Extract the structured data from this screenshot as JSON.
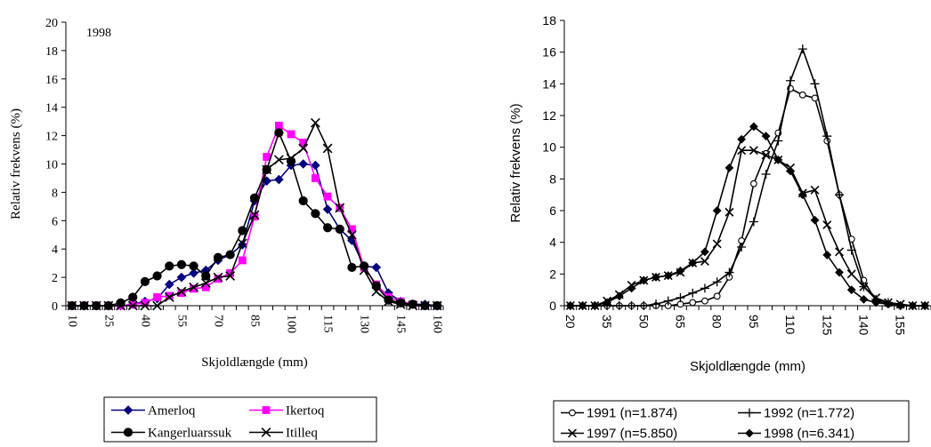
{
  "chart_data": [
    {
      "type": "line",
      "annotation": "1998",
      "xlabel": "Skjoldlængde (mm)",
      "ylabel": "Relativ frekvens (%)",
      "x_start": 10,
      "x_step": 5,
      "x_count": 31,
      "x_tick_labels": [
        "10",
        "25",
        "40",
        "55",
        "70",
        "85",
        "100",
        "115",
        "130",
        "145",
        "160"
      ],
      "ylim": [
        0,
        20
      ],
      "y_step": 2,
      "y_tick_labels": [
        "0",
        "2",
        "4",
        "6",
        "8",
        "10",
        "12",
        "14",
        "16",
        "18",
        "20"
      ],
      "legend_position": "below",
      "series": [
        {
          "name": "Amerloq",
          "color": "#000080",
          "marker": "diamond",
          "values": [
            0,
            0,
            0,
            0,
            0,
            0.1,
            0.3,
            0.5,
            1.5,
            2.0,
            2.3,
            2.5,
            3.2,
            3.6,
            4.3,
            7.4,
            8.8,
            8.9,
            9.9,
            10.0,
            9.9,
            6.8,
            5.4,
            4.6,
            2.8,
            2.7,
            0.9,
            0.3,
            0.1,
            0.1,
            0
          ]
        },
        {
          "name": "Ikertoq",
          "color": "#ff00ff",
          "marker": "square",
          "values": [
            0,
            0,
            0,
            0,
            0,
            0.1,
            0.2,
            0.6,
            0.7,
            0.9,
            1.2,
            1.3,
            1.9,
            2.3,
            3.2,
            6.3,
            10.5,
            12.7,
            12.1,
            11.5,
            9.0,
            7.7,
            6.9,
            5.4,
            2.7,
            1.5,
            0.6,
            0.3,
            0.1,
            0,
            0
          ]
        },
        {
          "name": "Kangerluarssuk",
          "color": "#000000",
          "marker": "circle",
          "values": [
            0,
            0,
            0,
            0,
            0.2,
            0.6,
            1.7,
            2.1,
            2.8,
            2.9,
            2.8,
            2.1,
            3.4,
            3.6,
            5.3,
            7.6,
            9.6,
            12.2,
            10.2,
            7.4,
            6.5,
            5.5,
            5.4,
            2.7,
            2.8,
            1.4,
            0.4,
            0.2,
            0.1,
            0,
            0
          ]
        },
        {
          "name": "Itilleq",
          "color": "#000000",
          "marker": "x",
          "values": [
            0,
            0,
            0,
            0,
            0,
            0,
            0,
            0,
            0.6,
            1.0,
            1.3,
            1.6,
            2.0,
            2.1,
            4.4,
            6.4,
            9.6,
            10.3,
            10.4,
            11.1,
            12.9,
            11.1,
            6.9,
            5.0,
            2.5,
            1.0,
            0.3,
            0.1,
            0,
            0,
            0
          ]
        }
      ]
    },
    {
      "type": "line",
      "xlabel": "Skjoldlængde (mm)",
      "ylabel": "Relativ frekvens (%)",
      "x_start": 20,
      "x_step": 5,
      "x_count": 30,
      "x_tick_labels": [
        "20",
        "35",
        "50",
        "65",
        "80",
        "95",
        "110",
        "125",
        "140",
        "155"
      ],
      "ylim": [
        0,
        18
      ],
      "y_step": 2,
      "y_tick_labels": [
        "0",
        "2",
        "4",
        "6",
        "8",
        "10",
        "12",
        "14",
        "16",
        "18"
      ],
      "legend_position": "below",
      "series": [
        {
          "name": "1991 (n=1.874)",
          "color": "#000000",
          "marker": "open-circle",
          "values": [
            0,
            0,
            0,
            0,
            0,
            0,
            0,
            0,
            0,
            0.1,
            0.2,
            0.3,
            0.6,
            1.8,
            4.1,
            7.7,
            9.6,
            10.9,
            13.7,
            13.3,
            13.1,
            10.4,
            7.0,
            4.2,
            1.6,
            0.3,
            0.1,
            0,
            0,
            0
          ]
        },
        {
          "name": "1992 (n=1.772)",
          "color": "#000000",
          "marker": "plus",
          "values": [
            0,
            0,
            0,
            0,
            0,
            0,
            0,
            0.1,
            0.3,
            0.5,
            0.8,
            1.1,
            1.5,
            2.1,
            3.7,
            5.3,
            8.3,
            10.4,
            14.2,
            16.2,
            14.0,
            10.7,
            7.0,
            3.5,
            1.2,
            0.4,
            0.2,
            0,
            0,
            0
          ]
        },
        {
          "name": "1997 (n=5.850)",
          "color": "#000000",
          "marker": "x",
          "values": [
            0,
            0,
            0,
            0.3,
            0.7,
            1.3,
            1.6,
            1.8,
            1.9,
            2.1,
            2.7,
            2.8,
            3.9,
            5.9,
            9.8,
            9.8,
            9.5,
            9.2,
            8.7,
            7.1,
            7.3,
            5.1,
            3.4,
            2.0,
            1.2,
            0.5,
            0.2,
            0.1,
            0,
            0
          ]
        },
        {
          "name": "1998 (n=6.341)",
          "color": "#000000",
          "marker": "diamond",
          "values": [
            0,
            0,
            0,
            0.2,
            0.6,
            1.1,
            1.6,
            1.8,
            1.9,
            2.2,
            2.7,
            3.4,
            6.0,
            8.7,
            10.5,
            11.3,
            10.7,
            9.2,
            8.5,
            7.0,
            5.4,
            3.2,
            2.1,
            1.0,
            0.4,
            0.2,
            0.1,
            0,
            0,
            0
          ]
        }
      ]
    }
  ]
}
